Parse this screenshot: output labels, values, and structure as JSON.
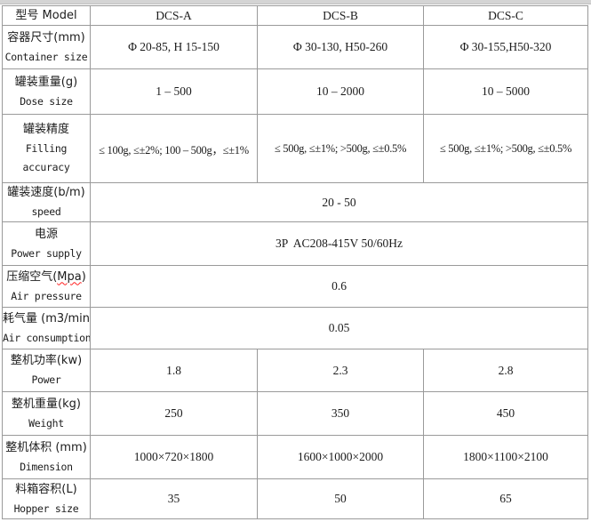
{
  "table": {
    "border_color": "#9a9a9a",
    "top_strip_color": "#d4d4d4",
    "text_color": "#1c1c1c",
    "misspell_underline_color": "#ff2020",
    "header": {
      "label": "型号 Model",
      "models": [
        "DCS-A",
        "DCS-B",
        "DCS-C"
      ]
    },
    "rows": [
      {
        "zh": "容器尺寸(mm)",
        "en": "Container size",
        "values": [
          "Φ 20-85, H 15-150",
          "Φ 30-130, H50-260",
          "Φ 30-155,H50-320"
        ]
      },
      {
        "zh": "罐装重量(g)",
        "en": "Dose size",
        "values": [
          "1 – 500",
          "10 – 2000",
          "10 – 5000"
        ]
      },
      {
        "zh": "罐装精度",
        "en": "Filling\naccuracy",
        "values": [
          "≤ 100g, ≤±2%; 100 – 500g，≤±1%",
          "≤ 500g, ≤±1%; >500g, ≤±0.5%",
          "≤ 500g, ≤±1%; >500g, ≤±0.5%"
        ]
      },
      {
        "zh": "罐装速度(b/m)",
        "en": "speed",
        "value": "20 - 50"
      },
      {
        "zh": "电源",
        "en": "Power supply",
        "value": "3P  AC208-415V 50/60Hz"
      },
      {
        "zh_parts": {
          "prefix": "压缩空气(",
          "misspelled": "Mpa",
          "suffix": ")"
        },
        "en": "Air pressure",
        "value": "0.6"
      },
      {
        "zh": "耗气量 (m3/min)",
        "en": "Air consumption",
        "value": "0.05"
      },
      {
        "zh": "整机功率(kw)",
        "en": "Power",
        "values": [
          "1.8",
          "2.3",
          "2.8"
        ]
      },
      {
        "zh": "整机重量(kg)",
        "en": "Weight",
        "values": [
          "250",
          "350",
          "450"
        ]
      },
      {
        "zh": "整机体积 (mm)",
        "en": "Dimension",
        "values": [
          "1000×720×1800",
          "1600×1000×2000",
          "1800×1100×2100"
        ]
      },
      {
        "zh": "料箱容积(L)",
        "en": "Hopper size",
        "values": [
          "35",
          "50",
          "65"
        ]
      }
    ]
  }
}
